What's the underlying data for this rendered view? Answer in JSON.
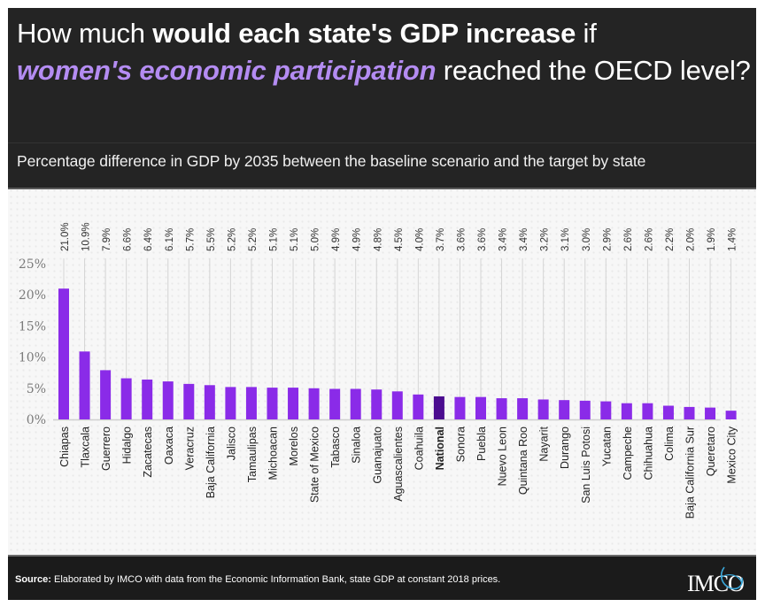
{
  "header": {
    "title_parts": {
      "p1": "How much ",
      "p2_bold": "would each state's GDP increase",
      "p3": " if ",
      "p4_accent": "women's economic participation",
      "p5": " reached the OECD level?"
    },
    "subtitle": "Percentage difference in GDP by 2035 between the baseline scenario and the target by state"
  },
  "footer": {
    "source_label": "Source:",
    "source_text": " Elaborated by IMCO with data from the Economic Information Bank, state GDP at constant 2018 prices.",
    "logo_text": "IMCO"
  },
  "colors": {
    "bar": "#8a2be8",
    "highlight_bar": "#4b0c8f",
    "accent_text": "#b48cf2",
    "header_bg": "#242424"
  },
  "chart_data": {
    "type": "bar",
    "title": "How much would each state's GDP increase if women's economic participation reached the OECD level?",
    "subtitle": "Percentage difference in GDP by 2035 between the baseline scenario and the target by state",
    "xlabel": "",
    "ylabel": "",
    "ylim": [
      0,
      25
    ],
    "yticks": [
      0,
      5,
      10,
      15,
      20,
      25
    ],
    "ytick_labels": [
      "0%",
      "5%",
      "10%",
      "15%",
      "20%",
      "25%"
    ],
    "grid": "vertical lines per category",
    "highlight_category": "National",
    "categories": [
      "Chiapas",
      "Tlaxcala",
      "Guerrero",
      "Hidalgo",
      "Zacatecas",
      "Oaxaca",
      "Veracruz",
      "Baja California",
      "Jalisco",
      "Tamaulipas",
      "Michoacan",
      "Morelos",
      "State of Mexico",
      "Tabasco",
      "Sinaloa",
      "Guanajuato",
      "Aguascalientes",
      "Coahuila",
      "National",
      "Sonora",
      "Puebla",
      "Nuevo Leon",
      "Quintana Roo",
      "Nayarit",
      "Durango",
      "San Luis Potosi",
      "Yucatan",
      "Campeche",
      "Chihuahua",
      "Colima",
      "Baja California Sur",
      "Queretaro",
      "Mexico City"
    ],
    "values": [
      21.0,
      10.9,
      7.9,
      6.6,
      6.4,
      6.1,
      5.7,
      5.5,
      5.2,
      5.2,
      5.1,
      5.1,
      5.0,
      4.9,
      4.9,
      4.8,
      4.5,
      4.0,
      3.7,
      3.6,
      3.6,
      3.4,
      3.4,
      3.2,
      3.1,
      3.0,
      2.9,
      2.6,
      2.6,
      2.2,
      2.0,
      1.9,
      1.4
    ],
    "value_labels": [
      "21.0%",
      "10.9%",
      "7.9%",
      "6.6%",
      "6.4%",
      "6.1%",
      "5.7%",
      "5.5%",
      "5.2%",
      "5.2%",
      "5.1%",
      "5.1%",
      "5.0%",
      "4.9%",
      "4.9%",
      "4.8%",
      "4.5%",
      "4.0%",
      "3.7%",
      "3.6%",
      "3.6%",
      "3.4%",
      "3.4%",
      "3.2%",
      "3.1%",
      "3.0%",
      "2.9%",
      "2.6%",
      "2.6%",
      "2.2%",
      "2.0%",
      "1.9%",
      "1.4%"
    ]
  }
}
